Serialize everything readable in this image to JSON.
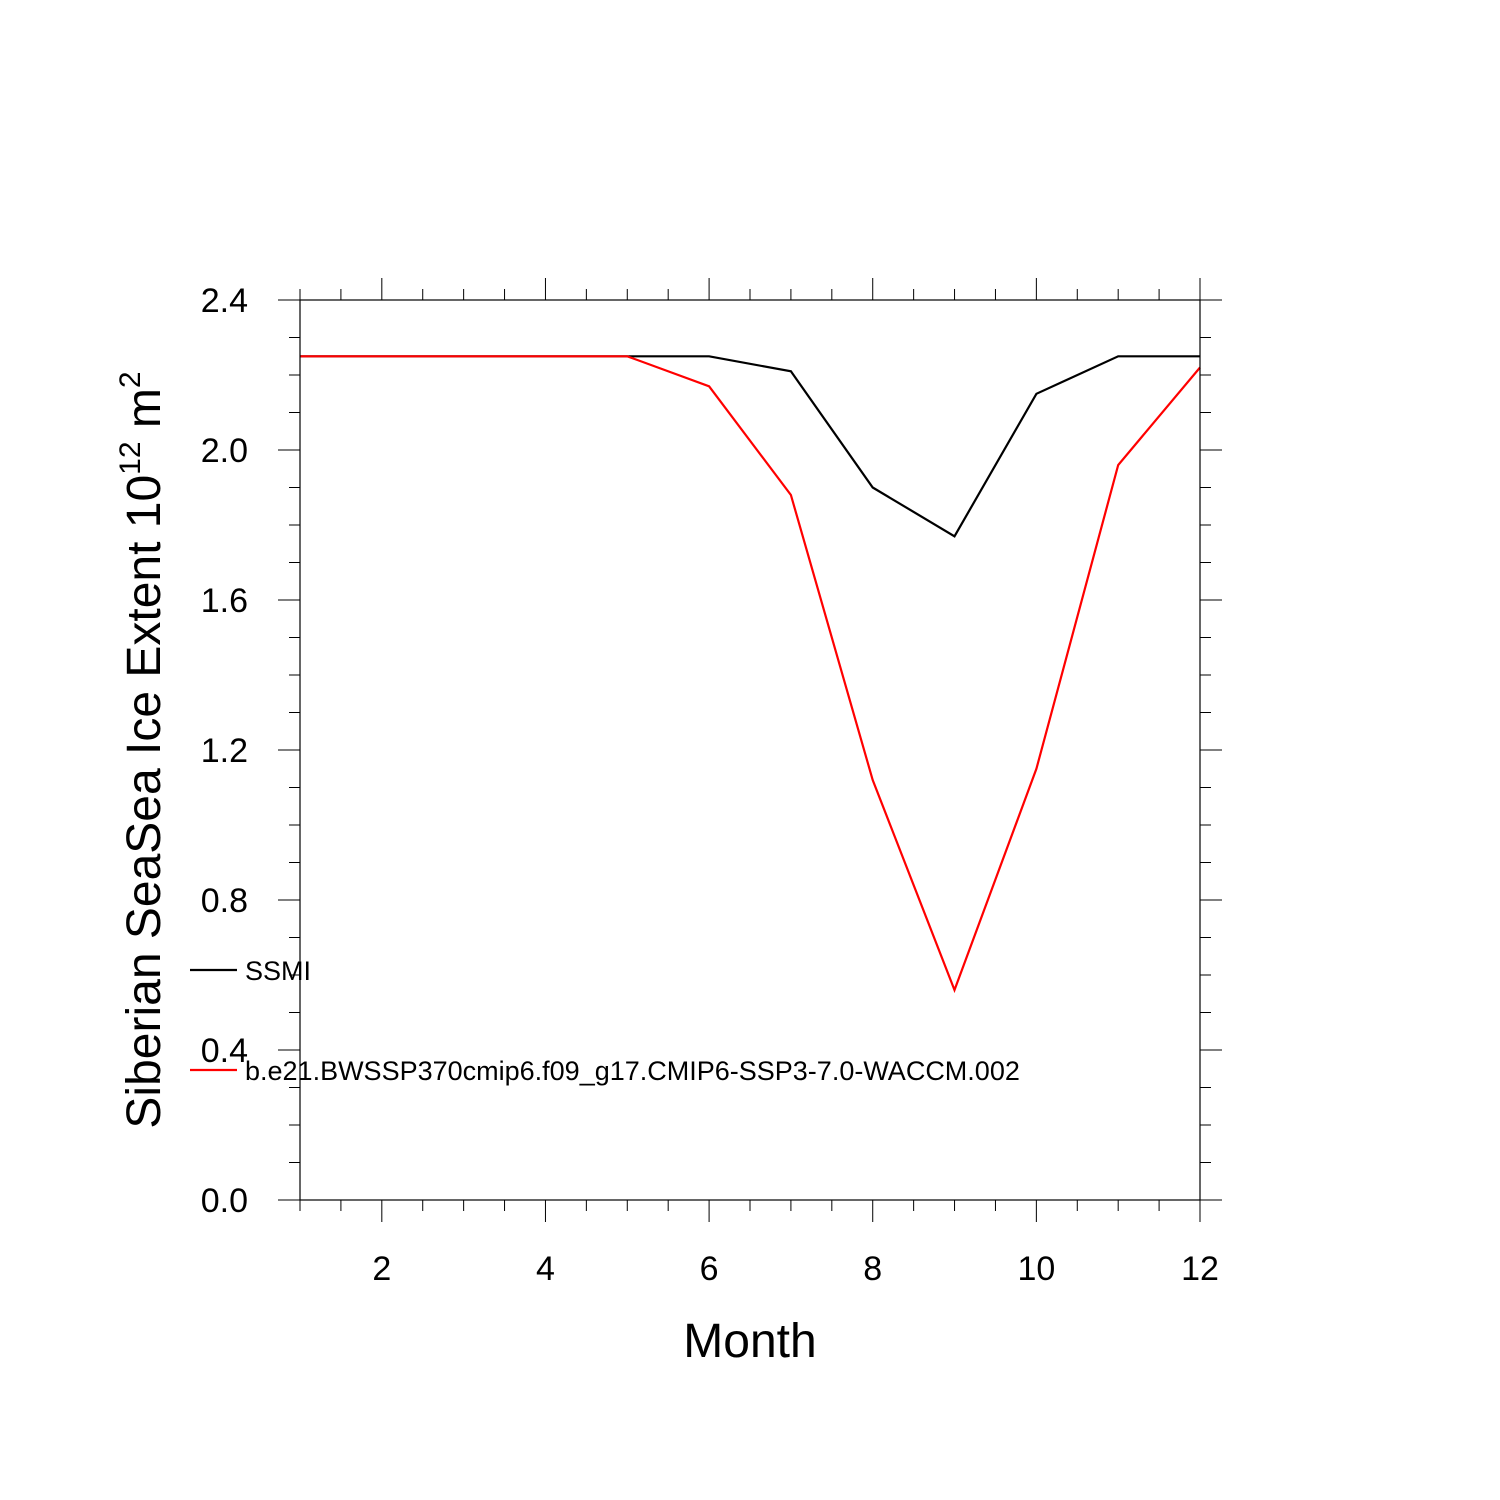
{
  "chart_data": {
    "type": "line",
    "xlabel": "Month",
    "ylabel_text": "Siberian SeaSea Ice Extent 10",
    "ylabel_sup1": "12",
    "ylabel_unit": " m",
    "ylabel_sup2": "2",
    "xlim": [
      1,
      12
    ],
    "ylim": [
      0.0,
      2.4
    ],
    "xticks": [
      2,
      4,
      6,
      8,
      10,
      12
    ],
    "xtick_labels": [
      "2",
      "4",
      "6",
      "8",
      "10",
      "12"
    ],
    "yticks": [
      0.0,
      0.4,
      0.8,
      1.2,
      1.6,
      2.0,
      2.4
    ],
    "ytick_labels": [
      "0.0",
      "0.4",
      "0.8",
      "1.2",
      "1.6",
      "2.0",
      "2.4"
    ],
    "x": [
      1,
      2,
      3,
      4,
      5,
      6,
      7,
      8,
      9,
      10,
      11,
      12
    ],
    "series": [
      {
        "name": "SSMI",
        "color": "#000000",
        "values": [
          2.25,
          2.25,
          2.25,
          2.25,
          2.25,
          2.25,
          2.21,
          1.9,
          1.77,
          2.15,
          2.25,
          2.25
        ]
      },
      {
        "name": "b.e21.BWSSP370cmip6.f09_g17.CMIP6-SSP3-7.0-WACCM.002",
        "color": "#ff0000",
        "values": [
          2.25,
          2.25,
          2.25,
          2.25,
          2.25,
          2.17,
          1.88,
          1.12,
          0.56,
          1.15,
          1.96,
          2.22
        ]
      }
    ],
    "legend_position": "lower-left, overlapping the left axis"
  }
}
